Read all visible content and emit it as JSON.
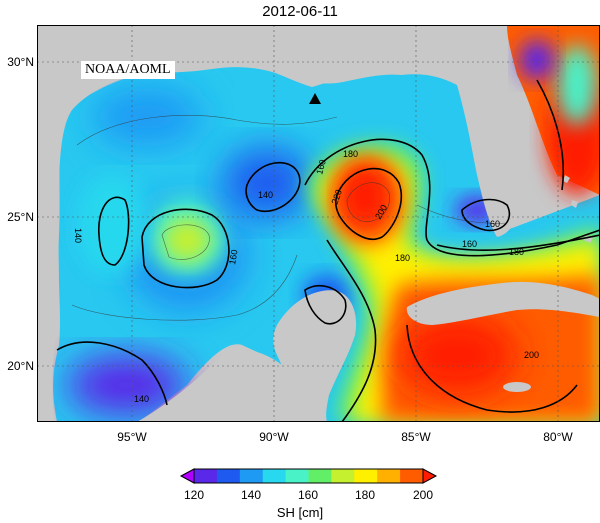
{
  "title": "2012-06-11",
  "badge": "NOAA/AOML",
  "lat_ticks": [
    "30°N",
    "25°N",
    "20°N"
  ],
  "lon_ticks": [
    "95°W",
    "90°W",
    "85°W",
    "80°W"
  ],
  "colorbar": {
    "title": "SH [cm]",
    "ticks": [
      "120",
      "140",
      "160",
      "180",
      "200"
    ],
    "colors": [
      "#b000ff",
      "#5a28e8",
      "#1e5af0",
      "#1e9af5",
      "#28d8ee",
      "#4af2c8",
      "#62ee66",
      "#c4f030",
      "#fff000",
      "#ffb000",
      "#ff5c00",
      "#ff1c00"
    ]
  },
  "map": {
    "extent": {
      "lon": [
        -98,
        -78
      ],
      "lat": [
        18,
        31
      ]
    },
    "variable": "sea surface height",
    "units": "cm",
    "contour_labels": [
      "140",
      "160",
      "180",
      "200",
      "220",
      "140",
      "160",
      "180",
      "160",
      "180",
      "200",
      "140",
      "160",
      "180",
      "200"
    ],
    "marker": "triangle"
  },
  "colors": {
    "land": "#c8c8c8",
    "ocean_base": "#28c8f0",
    "warm_core": "#ff1c00",
    "cold_core": "#3a3ae6"
  }
}
